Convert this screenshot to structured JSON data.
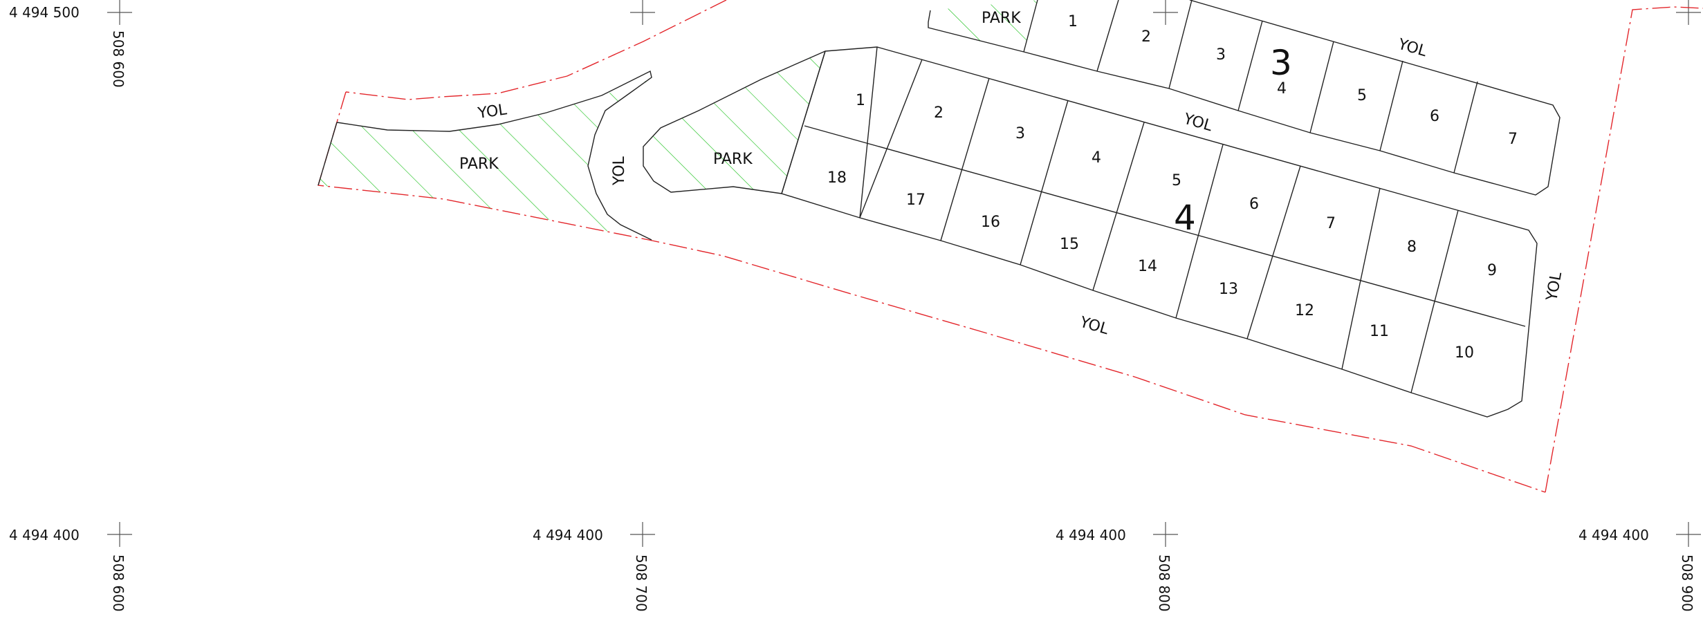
{
  "grid": {
    "row_top": {
      "label": "4 494 500"
    },
    "row_bottom": {
      "labels": [
        "4 494 400",
        "4 494 400",
        "4 494 400",
        "4 494 400"
      ]
    },
    "columns": [
      "508 600",
      "508 700",
      "508 800",
      "508 900"
    ],
    "column_top": "508 600"
  },
  "areas": {
    "park_left": "PARK",
    "park_middle": "PARK",
    "park_top": "PARK"
  },
  "roads": {
    "road_top_left": "YOL",
    "road_vertical_left": "YOL",
    "road_between_blocks": "YOL",
    "road_block3_top": "YOL",
    "road_bottom": "YOL",
    "road_right": "YOL"
  },
  "blocks": {
    "block_3": {
      "number": "3",
      "parcels": [
        "1",
        "2",
        "3",
        "4",
        "5",
        "6",
        "7"
      ]
    },
    "block_4": {
      "number": "4",
      "parcels_top": [
        "1",
        "2",
        "3",
        "4",
        "5",
        "6",
        "7",
        "8",
        "9"
      ],
      "parcels_bottom": [
        "18",
        "17",
        "16",
        "15",
        "14",
        "13",
        "12",
        "11",
        "10"
      ]
    }
  },
  "colors": {
    "parcel_line": "#222222",
    "boundary": "#e3262b",
    "park_hatch": "#22c322",
    "grid_cross": "#555555"
  }
}
